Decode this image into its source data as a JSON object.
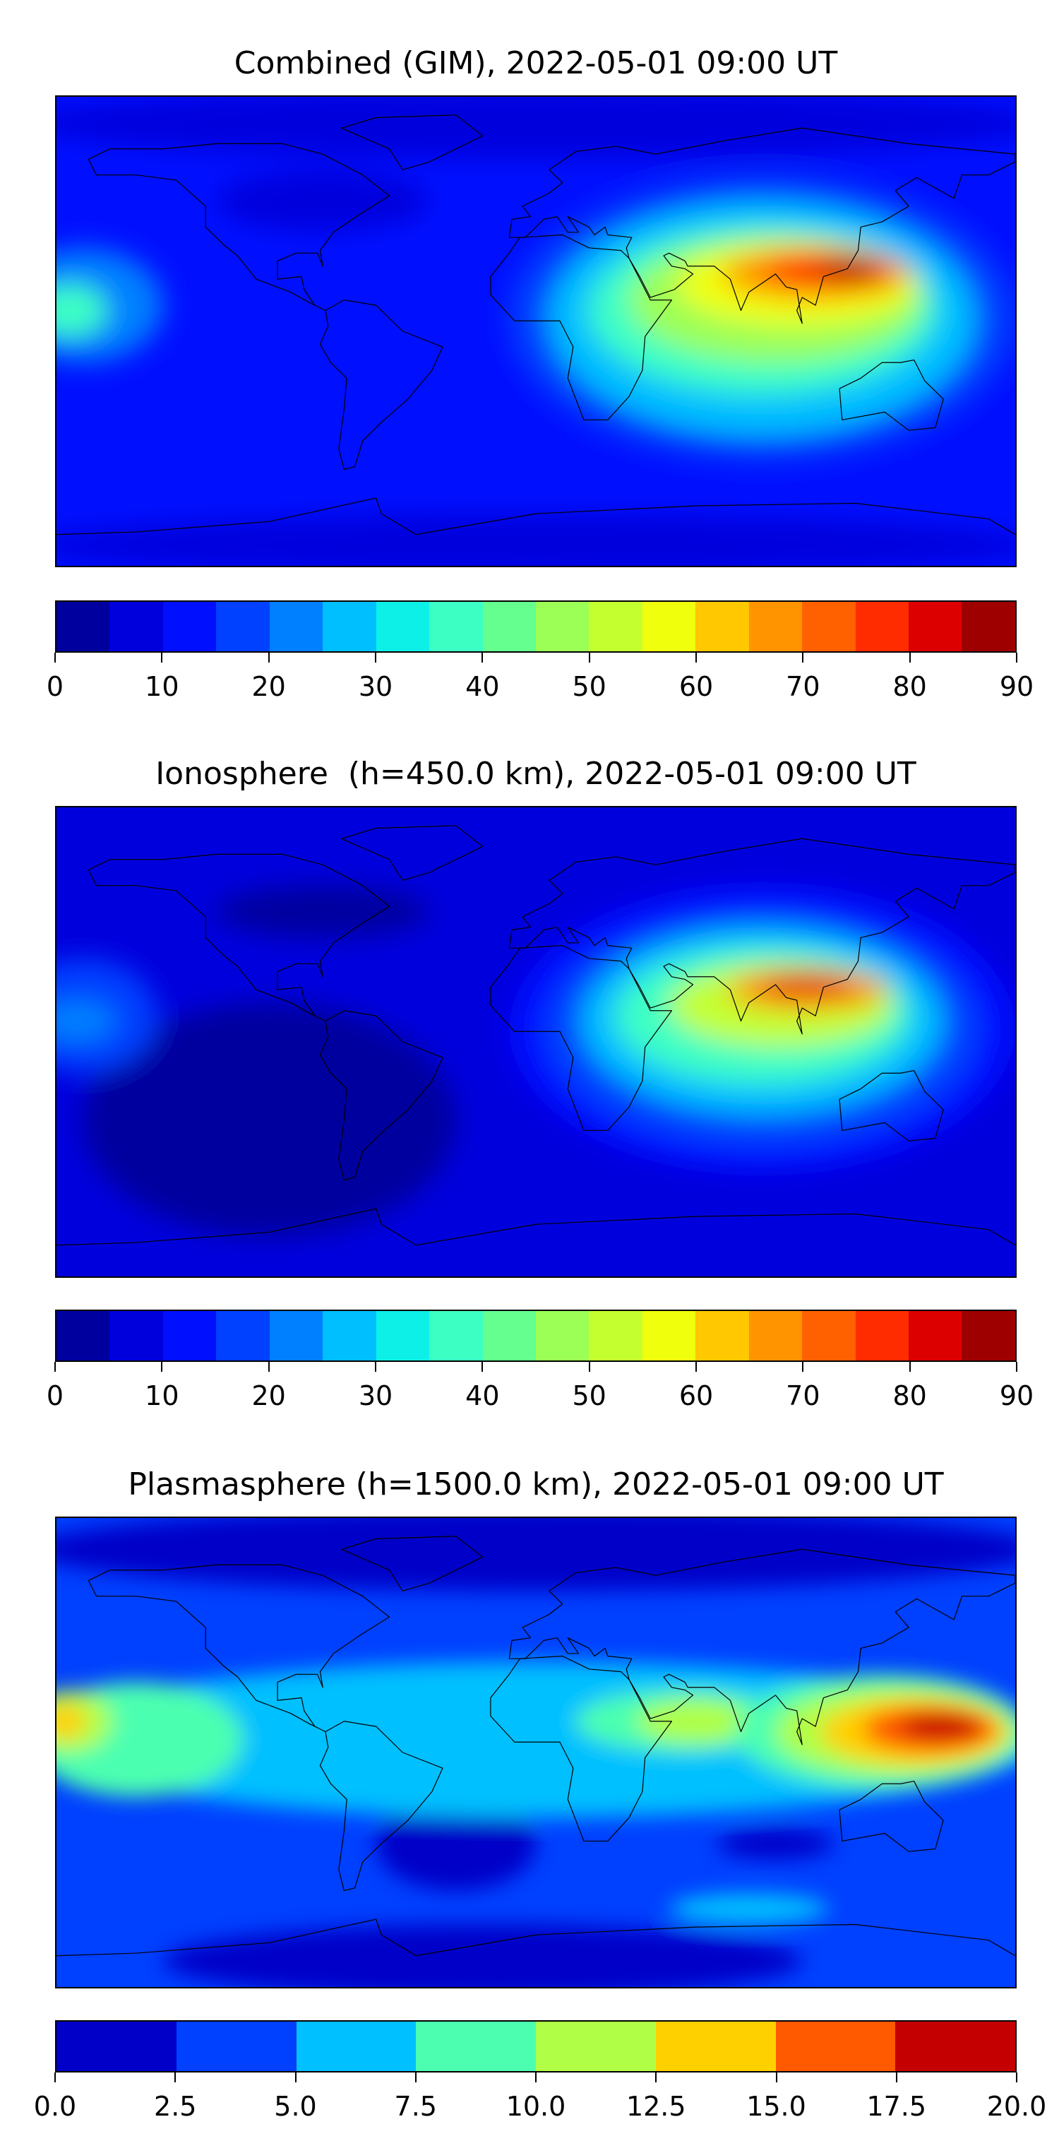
{
  "chart_data": [
    {
      "type": "heatmap",
      "title": "Combined (GIM), 2022-05-01 09:00 UT",
      "projection": "equirectangular world map with coastlines",
      "colorbar": {
        "range": [
          0,
          90
        ],
        "levels": [
          0,
          5,
          10,
          15,
          20,
          25,
          30,
          35,
          40,
          45,
          50,
          55,
          60,
          65,
          70,
          75,
          80,
          85,
          90
        ],
        "tick_labels": [
          "0",
          "10",
          "20",
          "30",
          "40",
          "50",
          "60",
          "70",
          "80",
          "90"
        ],
        "tick_values": [
          0,
          10,
          20,
          30,
          40,
          50,
          60,
          70,
          80,
          90
        ],
        "colors": [
          "#00009f",
          "#0000dd",
          "#0010ff",
          "#0040ff",
          "#0080ff",
          "#00bfff",
          "#0cf0e8",
          "#3cffc4",
          "#64ff8e",
          "#9cff56",
          "#c4ff30",
          "#f0ff0c",
          "#ffc800",
          "#ff9400",
          "#ff6000",
          "#ff2c00",
          "#dd0000",
          "#9e0000"
        ]
      },
      "features": "maximum ~80-90 over northern India / southern China (~25N); enhanced band 40-70 over Africa, Arabia, Indian Ocean, SE Asia; minimum 0-15 over the Americas and polar regions"
    },
    {
      "type": "heatmap",
      "title": "Ionosphere  (h=450.0 km), 2022-05-01 09:00 UT",
      "projection": "equirectangular world map with coastlines",
      "colorbar": {
        "range": [
          0,
          90
        ],
        "levels": [
          0,
          5,
          10,
          15,
          20,
          25,
          30,
          35,
          40,
          45,
          50,
          55,
          60,
          65,
          70,
          75,
          80,
          85,
          90
        ],
        "tick_labels": [
          "0",
          "10",
          "20",
          "30",
          "40",
          "50",
          "60",
          "70",
          "80",
          "90"
        ],
        "tick_values": [
          0,
          10,
          20,
          30,
          40,
          50,
          60,
          70,
          80,
          90
        ],
        "colors": [
          "#00009f",
          "#0000dd",
          "#0010ff",
          "#0040ff",
          "#0080ff",
          "#00bfff",
          "#0cf0e8",
          "#3cffc4",
          "#64ff8e",
          "#9cff56",
          "#c4ff30",
          "#f0ff0c",
          "#ffc800",
          "#ff9400",
          "#ff6000",
          "#ff2c00",
          "#dd0000",
          "#9e0000"
        ]
      },
      "features": "maximum ~70-80 over northern India (~25N); 30-60 over Africa/Arabia/Indian Ocean; 0-10 over the Americas"
    },
    {
      "type": "heatmap",
      "title": "Plasmasphere (h=1500.0 km), 2022-05-01 09:00 UT",
      "projection": "equirectangular world map with coastlines",
      "colorbar": {
        "range": [
          0.0,
          20.0
        ],
        "levels": [
          0,
          2.5,
          5,
          7.5,
          10,
          12.5,
          15,
          17.5,
          20
        ],
        "tick_labels": [
          "0.0",
          "2.5",
          "5.0",
          "7.5",
          "10.0",
          "12.5",
          "15.0",
          "17.5",
          "20.0"
        ],
        "tick_values": [
          0,
          2.5,
          5,
          7.5,
          10,
          12.5,
          15,
          17.5,
          20
        ],
        "colors": [
          "#0000c8",
          "#0040ff",
          "#00c0ff",
          "#4cffb0",
          "#b0ff46",
          "#ffd000",
          "#ff5a00",
          "#c40000"
        ]
      },
      "features": "maximum ~17.5-20 over western Pacific (~10N,150E) and date line; 10-15 over Arabia/Africa; 2.5-7.5 at high latitudes"
    }
  ]
}
